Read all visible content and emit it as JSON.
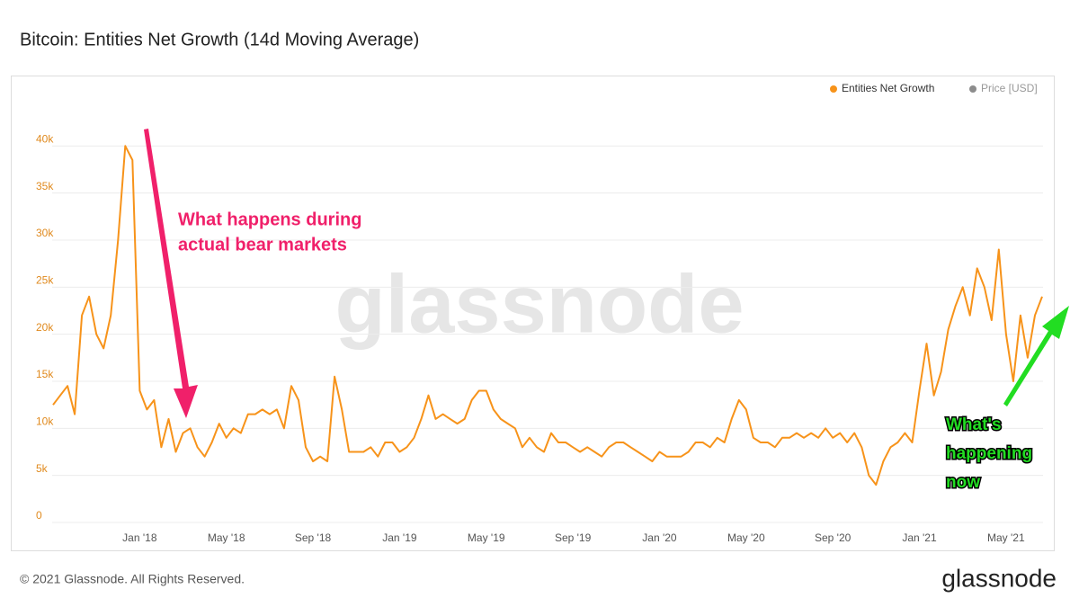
{
  "chart_data": {
    "type": "line",
    "title": "Bitcoin: Entities Net Growth (14d Moving Average)",
    "categories": [
      null,
      null,
      null,
      null,
      null,
      null,
      null,
      null,
      null,
      null,
      null,
      null,
      "Jan '18",
      null,
      null,
      null,
      null,
      null,
      null,
      null,
      null,
      null,
      null,
      null,
      "May '18",
      null,
      null,
      null,
      null,
      null,
      null,
      null,
      null,
      null,
      null,
      null,
      "Sep '18",
      null,
      null,
      null,
      null,
      null,
      null,
      null,
      null,
      null,
      null,
      null,
      "Jan '19",
      null,
      null,
      null,
      null,
      null,
      null,
      null,
      null,
      null,
      null,
      null,
      "May '19",
      null,
      null,
      null,
      null,
      null,
      null,
      null,
      null,
      null,
      null,
      null,
      "Sep '19",
      null,
      null,
      null,
      null,
      null,
      null,
      null,
      null,
      null,
      null,
      null,
      "Jan '20",
      null,
      null,
      null,
      null,
      null,
      null,
      null,
      null,
      null,
      null,
      null,
      "May '20",
      null,
      null,
      null,
      null,
      null,
      null,
      null,
      null,
      null,
      null,
      null,
      "Sep '20",
      null,
      null,
      null,
      null,
      null,
      null,
      null,
      null,
      null,
      null,
      null,
      "Jan '21",
      null,
      null,
      null,
      null,
      null,
      null,
      null,
      null,
      null,
      null,
      null,
      "May '21",
      null,
      null,
      null,
      null,
      null
    ],
    "series": [
      {
        "name": "Entities Net Growth",
        "color": "#f7931a",
        "values": [
          12500,
          13500,
          14500,
          11500,
          22000,
          24000,
          20000,
          18500,
          22000,
          30000,
          40000,
          38500,
          14000,
          12000,
          13000,
          8000,
          11000,
          7500,
          9500,
          10000,
          8000,
          7000,
          8500,
          10500,
          9000,
          10000,
          9500,
          11500,
          11500,
          12000,
          11500,
          12000,
          10000,
          14500,
          13000,
          8000,
          6500,
          7000,
          6500,
          15500,
          12000,
          7500,
          7500,
          7500,
          8000,
          7000,
          8500,
          8500,
          7500,
          8000,
          9000,
          11000,
          13500,
          11000,
          11500,
          11000,
          10500,
          11000,
          13000,
          14000,
          14000,
          12000,
          11000,
          10500,
          10000,
          8000,
          9000,
          8000,
          7500,
          9500,
          8500,
          8500,
          8000,
          7500,
          8000,
          7500,
          7000,
          8000,
          8500,
          8500,
          8000,
          7500,
          7000,
          6500,
          7500,
          7000,
          7000,
          7000,
          7500,
          8500,
          8500,
          8000,
          9000,
          8500,
          11000,
          13000,
          12000,
          9000,
          8500,
          8500,
          8000,
          9000,
          9000,
          9500,
          9000,
          9500,
          9000,
          10000,
          9000,
          9500,
          8500,
          9500,
          8000,
          5000,
          4000,
          6500,
          8000,
          8500,
          9500,
          8500,
          14000,
          19000,
          13500,
          16000,
          20500,
          23000,
          25000,
          22000,
          27000,
          25000,
          21500,
          29000,
          20000,
          15000,
          22000,
          17500,
          22000,
          24000
        ]
      }
    ],
    "inactive_legend": {
      "name": "Price [USD]",
      "color": "#8c8c8c"
    },
    "ylim": [
      0,
      45000
    ],
    "yticks": [
      0,
      {
        "value": 5000,
        "label": "5k"
      },
      {
        "value": 10000,
        "label": "10k"
      },
      {
        "value": 15000,
        "label": "15k"
      },
      {
        "value": 20000,
        "label": "20k"
      },
      {
        "value": 25000,
        "label": "25k"
      },
      {
        "value": 30000,
        "label": "30k"
      },
      {
        "value": 35000,
        "label": "35k"
      },
      {
        "value": 40000,
        "label": "40k"
      }
    ],
    "grid": true,
    "watermark": "glassnode",
    "annotations": {
      "bear": [
        "What happens during",
        "actual bear markets"
      ],
      "now": [
        "What's",
        "happening",
        "now"
      ]
    },
    "footer": "© 2021 Glassnode. All Rights Reserved.",
    "logo": "glassnode"
  }
}
